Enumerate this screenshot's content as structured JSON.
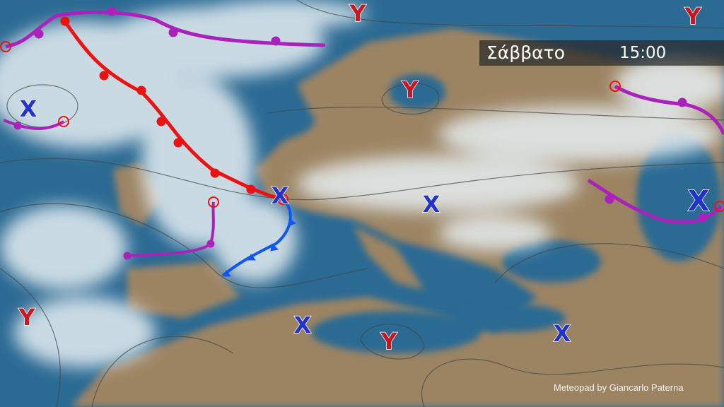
{
  "header": {
    "day": "Σάββατο",
    "time": "15:00"
  },
  "credit": "Meteopad by Giancarlo Paterna",
  "pressure_centers": {
    "high_label": "Υ",
    "low_label": "Χ",
    "high_color": "#c41822",
    "low_color": "#2233cc"
  },
  "fronts": {
    "warm_color": "#ee1111",
    "cold_color": "#1155ff",
    "occluded_color": "#aa22bb"
  },
  "colors": {
    "sea": "#2b6a93",
    "land": "#9c8464",
    "cloud": "#e6eef2"
  }
}
